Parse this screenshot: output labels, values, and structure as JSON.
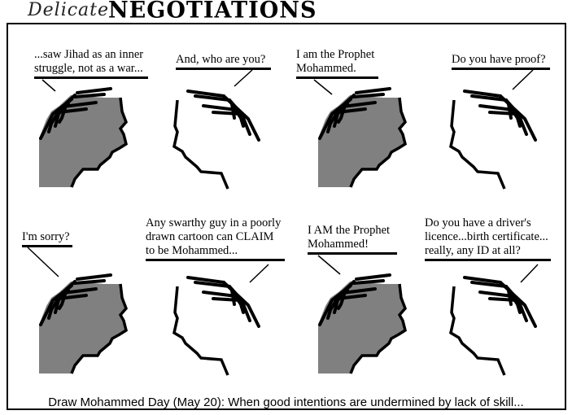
{
  "title": {
    "script": "Delicate",
    "bold": "NEGOTIATIONS"
  },
  "panels": [
    {
      "speech": "...saw Jihad as an inner\nstruggle, not as a war..."
    },
    {
      "speech": "And, who are you?"
    },
    {
      "speech": "I am the Prophet\nMohammed."
    },
    {
      "speech": "Do you have proof?"
    },
    {
      "speech": "I'm sorry?"
    },
    {
      "speech": "Any swarthy guy in a poorly\ndrawn cartoon can CLAIM\nto be Mohammed..."
    },
    {
      "speech": "I AM the Prophet\nMohammed!"
    },
    {
      "speech": "Do you have a driver's\nlicence...birth certificate...\nreally, any ID at all?"
    }
  ],
  "caption": "Draw Mohammed Day (May 20): When good intentions are undermined by lack of skill...",
  "colors": {
    "skin_dark": "#808080",
    "ink": "#000000"
  }
}
